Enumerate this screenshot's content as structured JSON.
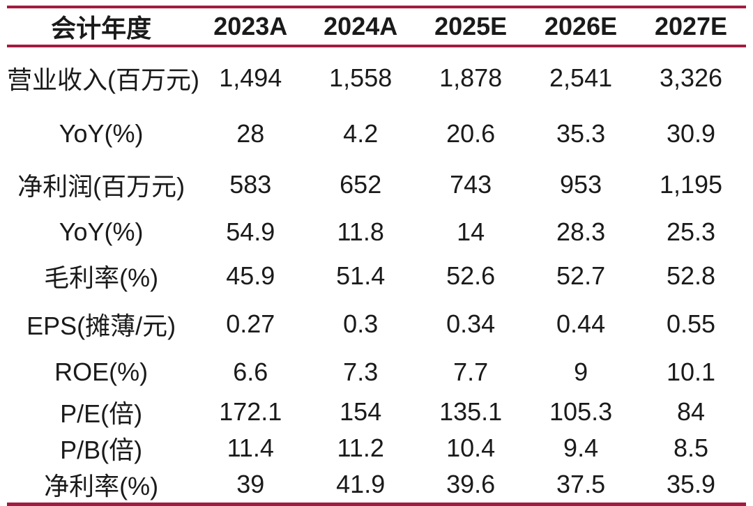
{
  "colors": {
    "accent_line": "#A11C40",
    "text": "#1A1A1A",
    "background": "#FFFFFF"
  },
  "chart_data": {
    "type": "table",
    "title": "",
    "columns": [
      "会计年度",
      "2023A",
      "2024A",
      "2025E",
      "2026E",
      "2027E"
    ],
    "rows": [
      {
        "label": "营业收入(百万元)",
        "values": [
          "1,494",
          "1,558",
          "1,878",
          "2,541",
          "3,326"
        ]
      },
      {
        "label": "YoY(%)",
        "values": [
          "28",
          "4.2",
          "20.6",
          "35.3",
          "30.9"
        ]
      },
      {
        "label": "净利润(百万元)",
        "values": [
          "583",
          "652",
          "743",
          "953",
          "1,195"
        ]
      },
      {
        "label": "YoY(%)",
        "values": [
          "54.9",
          "11.8",
          "14",
          "28.3",
          "25.3"
        ]
      },
      {
        "label": "毛利率(%)",
        "values": [
          "45.9",
          "51.4",
          "52.6",
          "52.7",
          "52.8"
        ]
      },
      {
        "label": "EPS(摊薄/元)",
        "values": [
          "0.27",
          "0.3",
          "0.34",
          "0.44",
          "0.55"
        ]
      },
      {
        "label": "ROE(%)",
        "values": [
          "6.6",
          "7.3",
          "7.7",
          "9",
          "10.1"
        ]
      },
      {
        "label": "P/E(倍)",
        "values": [
          "172.1",
          "154",
          "135.1",
          "105.3",
          "84"
        ]
      },
      {
        "label": "P/B(倍)",
        "values": [
          "11.4",
          "11.2",
          "10.4",
          "9.4",
          "8.5"
        ]
      },
      {
        "label": "净利率(%)",
        "values": [
          "39",
          "41.9",
          "39.6",
          "37.5",
          "35.9"
        ]
      }
    ]
  }
}
